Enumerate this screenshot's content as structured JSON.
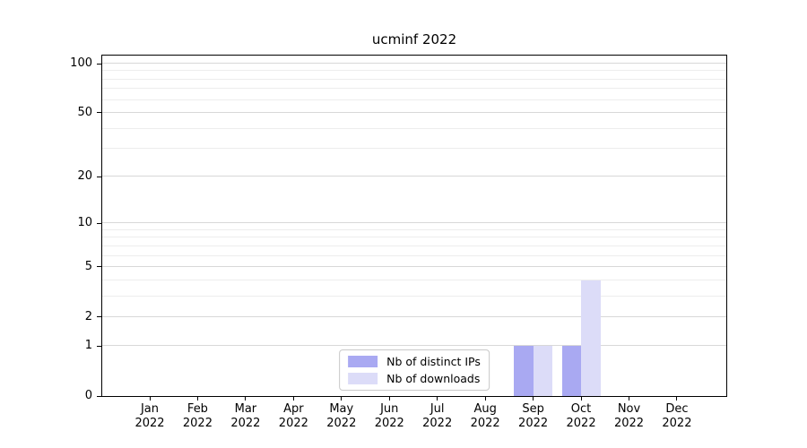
{
  "chart_data": {
    "type": "bar",
    "title": "ucminf 2022",
    "categories": [
      "Jan 2022",
      "Feb 2022",
      "Mar 2022",
      "Apr 2022",
      "May 2022",
      "Jun 2022",
      "Jul 2022",
      "Aug 2022",
      "Sep 2022",
      "Oct 2022",
      "Nov 2022",
      "Dec 2022"
    ],
    "series": [
      {
        "name": "Nb of distinct IPs",
        "color": "#a9a9f2",
        "values": [
          0,
          0,
          0,
          0,
          0,
          0,
          0,
          0,
          1,
          1,
          0,
          0
        ]
      },
      {
        "name": "Nb of downloads",
        "color": "#dcdcf8",
        "values": [
          0,
          0,
          0,
          0,
          0,
          0,
          0,
          0,
          1,
          4,
          0,
          0
        ]
      }
    ],
    "xlabel": "",
    "ylabel": "",
    "yscale": "log1p",
    "ylim": [
      0,
      112
    ],
    "yticks": [
      0,
      1,
      2,
      5,
      10,
      20,
      50,
      100
    ],
    "yticks_minor": [
      3,
      4,
      6,
      7,
      8,
      9,
      30,
      40,
      60,
      70,
      80,
      90
    ],
    "grid": "horizontal",
    "legend_position": "lower center",
    "colors": {
      "major_grid": "#d8d8d8",
      "minor_grid": "#ededed",
      "axis": "#000000",
      "background": "#ffffff"
    }
  }
}
